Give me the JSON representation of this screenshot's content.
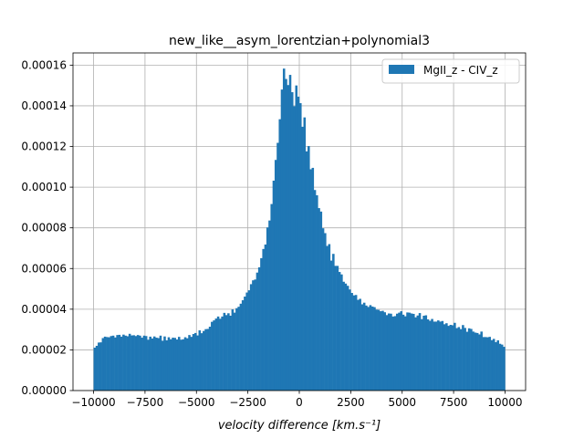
{
  "chart_data": {
    "type": "bar",
    "title": "new_like__asym_lorentzian+polynomial3",
    "xlabel": "velocity difference [km.s⁻¹]",
    "ylabel": "",
    "xlim": [
      -11000,
      11000
    ],
    "ylim": [
      0,
      0.000166
    ],
    "xticks": [
      -10000,
      -7500,
      -5000,
      -2500,
      0,
      2500,
      5000,
      7500,
      10000
    ],
    "xtick_labels": [
      "−10000",
      "−7500",
      "−5000",
      "−2500",
      "0",
      "2500",
      "5000",
      "7500",
      "10000"
    ],
    "yticks": [
      0,
      2e-05,
      4e-05,
      6e-05,
      8e-05,
      0.0001,
      0.00012,
      0.00014,
      0.00016
    ],
    "ytick_labels": [
      "0.00000",
      "0.00002",
      "0.00004",
      "0.00006",
      "0.00008",
      "0.00010",
      "0.00012",
      "0.00014",
      "0.00016"
    ],
    "grid": true,
    "legend": {
      "position": "top-right",
      "entries": [
        "MgII_z - CIV_z"
      ]
    },
    "series": [
      {
        "name": "MgII_z - CIV_z",
        "color": "#1f77b4",
        "bin_range": [
          -10000,
          10000
        ],
        "bin_count": 200,
        "values": [
          2.11e-05,
          2.2e-05,
          2.36e-05,
          2.37e-05,
          2.58e-05,
          2.65e-05,
          2.63e-05,
          2.62e-05,
          2.68e-05,
          2.7e-05,
          2.61e-05,
          2.73e-05,
          2.74e-05,
          2.65e-05,
          2.75e-05,
          2.7e-05,
          2.67e-05,
          2.79e-05,
          2.71e-05,
          2.72e-05,
          2.68e-05,
          2.73e-05,
          2.7e-05,
          2.6e-05,
          2.7e-05,
          2.68e-05,
          2.5e-05,
          2.65e-05,
          2.56e-05,
          2.66e-05,
          2.6e-05,
          2.58e-05,
          2.7e-05,
          2.45e-05,
          2.66e-05,
          2.47e-05,
          2.62e-05,
          2.52e-05,
          2.6e-05,
          2.59e-05,
          2.51e-05,
          2.64e-05,
          2.5e-05,
          2.52e-05,
          2.62e-05,
          2.57e-05,
          2.73e-05,
          2.64e-05,
          2.78e-05,
          2.83e-05,
          2.71e-05,
          2.96e-05,
          2.82e-05,
          2.93e-05,
          3.02e-05,
          3.03e-05,
          3.14e-05,
          3.38e-05,
          3.45e-05,
          3.54e-05,
          3.64e-05,
          3.53e-05,
          3.64e-05,
          3.82e-05,
          3.71e-05,
          3.8e-05,
          3.68e-05,
          3.99e-05,
          3.83e-05,
          4.05e-05,
          4.12e-05,
          4.27e-05,
          4.44e-05,
          4.62e-05,
          4.82e-05,
          4.93e-05,
          5.23e-05,
          5.42e-05,
          5.46e-05,
          5.8e-05,
          6.06e-05,
          6.51e-05,
          6.96e-05,
          7.18e-05,
          8.02e-05,
          8.36e-05,
          9.17e-05,
          0.0001032,
          0.0001134,
          0.0001218,
          0.0001334,
          0.000148,
          0.0001583,
          0.0001532,
          0.0001502,
          0.0001552,
          0.0001467,
          0.0001398,
          0.00015,
          0.0001445,
          0.0001413,
          0.0001297,
          0.0001343,
          0.0001176,
          0.0001202,
          0.0001088,
          0.0001095,
          9.86e-05,
          9.6e-05,
          8.97e-05,
          8.8e-05,
          7.98e-05,
          7.74e-05,
          7.11e-05,
          7.2e-05,
          6.39e-05,
          6.72e-05,
          6.13e-05,
          6.13e-05,
          5.83e-05,
          5.71e-05,
          5.35e-05,
          5.26e-05,
          5.15e-05,
          4.97e-05,
          4.8e-05,
          4.68e-05,
          4.7e-05,
          4.46e-05,
          4.51e-05,
          4.24e-05,
          4.32e-05,
          4.18e-05,
          4.11e-05,
          4.2e-05,
          4.13e-05,
          4.1e-05,
          3.98e-05,
          3.97e-05,
          3.9e-05,
          3.92e-05,
          3.85e-05,
          3.71e-05,
          3.79e-05,
          3.78e-05,
          3.64e-05,
          3.66e-05,
          3.78e-05,
          3.83e-05,
          3.9e-05,
          3.73e-05,
          3.65e-05,
          3.84e-05,
          3.83e-05,
          3.79e-05,
          3.77e-05,
          3.6e-05,
          3.69e-05,
          3.81e-05,
          3.51e-05,
          3.68e-05,
          3.7e-05,
          3.5e-05,
          3.43e-05,
          3.52e-05,
          3.39e-05,
          3.39e-05,
          3.45e-05,
          3.39e-05,
          3.42e-05,
          3.26e-05,
          3.31e-05,
          3.18e-05,
          3.23e-05,
          3.21e-05,
          3.33e-05,
          3.07e-05,
          3.12e-05,
          3.02e-05,
          3.22e-05,
          3.08e-05,
          2.89e-05,
          3.06e-05,
          3.03e-05,
          2.9e-05,
          2.85e-05,
          2.83e-05,
          2.76e-05,
          2.9e-05,
          2.63e-05,
          2.63e-05,
          2.62e-05,
          2.64e-05,
          2.48e-05,
          2.54e-05,
          2.38e-05,
          2.47e-05,
          2.3e-05,
          2.26e-05,
          2.15e-05
        ]
      }
    ]
  }
}
